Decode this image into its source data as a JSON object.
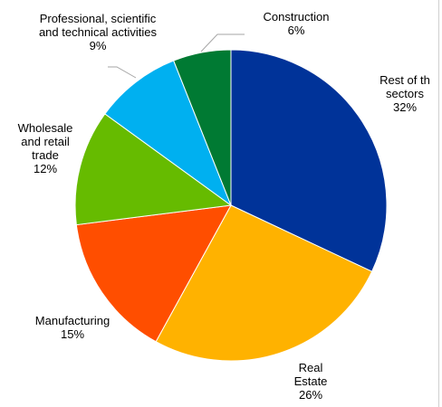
{
  "chart_data": {
    "type": "pie",
    "slices": [
      {
        "label_lines": [
          "Rest of th",
          "sectors"
        ],
        "value": 32,
        "value_label": "32%",
        "color": "#003399"
      },
      {
        "label_lines": [
          "Real",
          "Estate"
        ],
        "value": 26,
        "value_label": "26%",
        "color": "#FFB200"
      },
      {
        "label_lines": [
          "Manufacturing"
        ],
        "value": 15,
        "value_label": "15%",
        "color": "#FF4E00"
      },
      {
        "label_lines": [
          "Wholesale",
          "and retail",
          "trade"
        ],
        "value": 12,
        "value_label": "12%",
        "color": "#66BB00"
      },
      {
        "label_lines": [
          "Professional, scientific",
          "and technical activities"
        ],
        "value": 9,
        "value_label": "9%",
        "color": "#00B0F0"
      },
      {
        "label_lines": [
          "Construction"
        ],
        "value": 6,
        "value_label": "6%",
        "color": "#007A33"
      }
    ],
    "start_position": "top",
    "direction": "clockwise"
  }
}
